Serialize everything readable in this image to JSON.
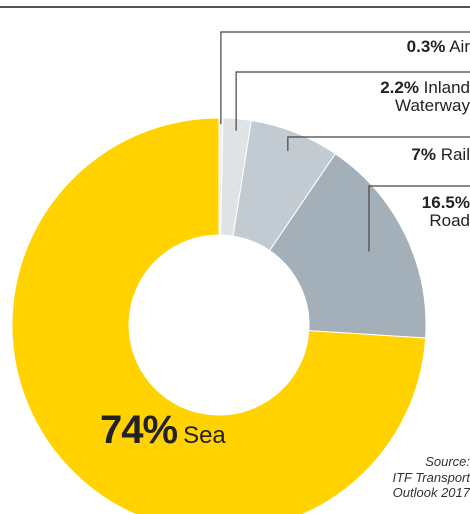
{
  "chart_data": {
    "type": "pie",
    "donut": true,
    "title": "",
    "slices": [
      {
        "label": "Air",
        "value": 0.3,
        "value_text": "0.3%",
        "color": "#f0f0f0"
      },
      {
        "label": "Inland Waterway",
        "label_line1": "Inland",
        "label_line2": "Waterway",
        "value": 2.2,
        "value_text": "2.2%",
        "color": "#dfe3e6"
      },
      {
        "label": "Rail",
        "value": 7,
        "value_text": "7%",
        "color": "#c2cbd1"
      },
      {
        "label": "Road",
        "value": 16.5,
        "value_text": "16.5%",
        "color": "#a4b0b9"
      },
      {
        "label": "Sea",
        "value": 74,
        "value_text": "74%",
        "color": "#ffd200"
      }
    ],
    "source": {
      "line1": "Source:",
      "line2": "ITF Transport",
      "line3": "Outlook 2017"
    }
  }
}
